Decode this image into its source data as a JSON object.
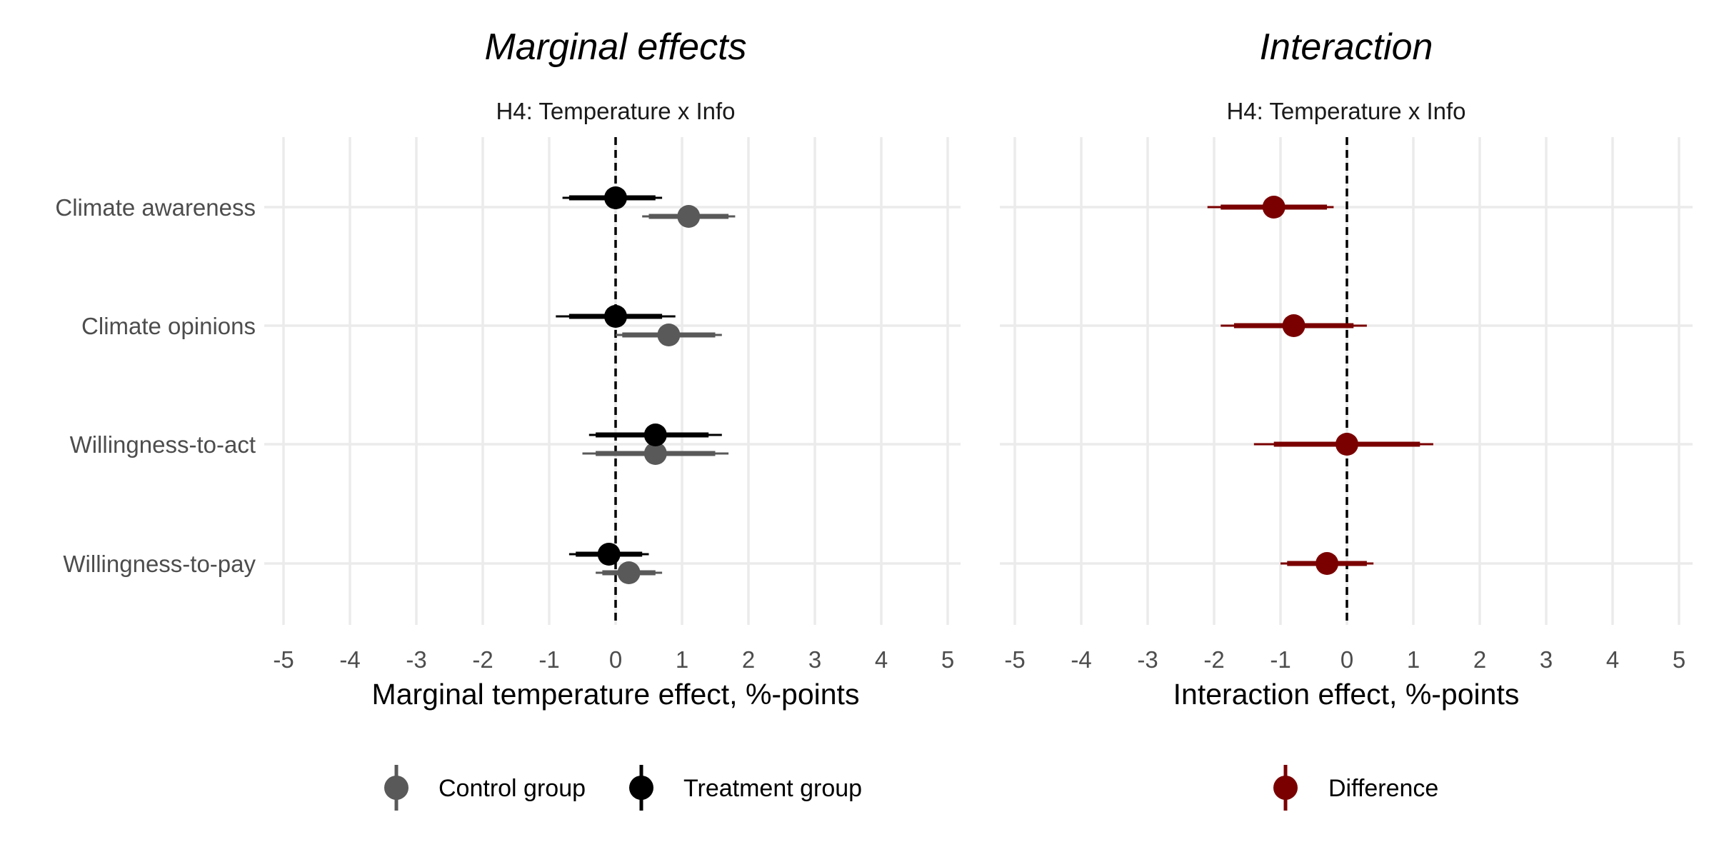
{
  "colors": {
    "control": "#595959",
    "treatment": "#000000",
    "difference": "#7a0000",
    "grid": "#ebebeb",
    "zero_line": "#000000"
  },
  "chart_data": [
    {
      "type": "scatter",
      "subtype": "coefficient-plot",
      "title": "Marginal effects",
      "facet_label": "H4: Temperature x Info",
      "xlabel": "Marginal temperature effect, %-points",
      "ylabel": "",
      "xlim": [
        -5,
        5
      ],
      "x_ticks": [
        -5,
        -4,
        -3,
        -2,
        -1,
        0,
        1,
        2,
        3,
        4,
        5
      ],
      "categories": [
        "Climate awareness",
        "Climate opinions",
        "Willingness-to-act",
        "Willingness-to-pay"
      ],
      "zero_reference_line": true,
      "grid": true,
      "legend_position": "bottom",
      "series": [
        {
          "name": "Control group",
          "color_key": "control",
          "offset": "below",
          "estimates": [
            1.1,
            0.8,
            0.6,
            0.2
          ],
          "ci_inner": [
            [
              0.5,
              1.7
            ],
            [
              0.1,
              1.5
            ],
            [
              -0.3,
              1.5
            ],
            [
              -0.2,
              0.6
            ]
          ],
          "ci_outer": [
            [
              0.4,
              1.8
            ],
            [
              0.0,
              1.6
            ],
            [
              -0.5,
              1.7
            ],
            [
              -0.3,
              0.7
            ]
          ]
        },
        {
          "name": "Treatment group",
          "color_key": "treatment",
          "offset": "above",
          "estimates": [
            0.0,
            0.0,
            0.6,
            -0.1
          ],
          "ci_inner": [
            [
              -0.7,
              0.6
            ],
            [
              -0.7,
              0.7
            ],
            [
              -0.3,
              1.4
            ],
            [
              -0.6,
              0.4
            ]
          ],
          "ci_outer": [
            [
              -0.8,
              0.7
            ],
            [
              -0.9,
              0.9
            ],
            [
              -0.4,
              1.6
            ],
            [
              -0.7,
              0.5
            ]
          ]
        }
      ]
    },
    {
      "type": "scatter",
      "subtype": "coefficient-plot",
      "title": "Interaction",
      "facet_label": "H4: Temperature x Info",
      "xlabel": "Interaction effect, %-points",
      "ylabel": "",
      "xlim": [
        -5,
        5
      ],
      "x_ticks": [
        -5,
        -4,
        -3,
        -2,
        -1,
        0,
        1,
        2,
        3,
        4,
        5
      ],
      "categories": [
        "Climate awareness",
        "Climate opinions",
        "Willingness-to-act",
        "Willingness-to-pay"
      ],
      "zero_reference_line": true,
      "grid": true,
      "legend_position": "bottom",
      "series": [
        {
          "name": "Difference",
          "color_key": "difference",
          "offset": "none",
          "estimates": [
            -1.1,
            -0.8,
            0.0,
            -0.3
          ],
          "ci_inner": [
            [
              -1.9,
              -0.3
            ],
            [
              -1.7,
              0.1
            ],
            [
              -1.1,
              1.1
            ],
            [
              -0.9,
              0.3
            ]
          ],
          "ci_outer": [
            [
              -2.1,
              -0.2
            ],
            [
              -1.9,
              0.3
            ],
            [
              -1.4,
              1.3
            ],
            [
              -1.0,
              0.4
            ]
          ]
        }
      ]
    }
  ]
}
